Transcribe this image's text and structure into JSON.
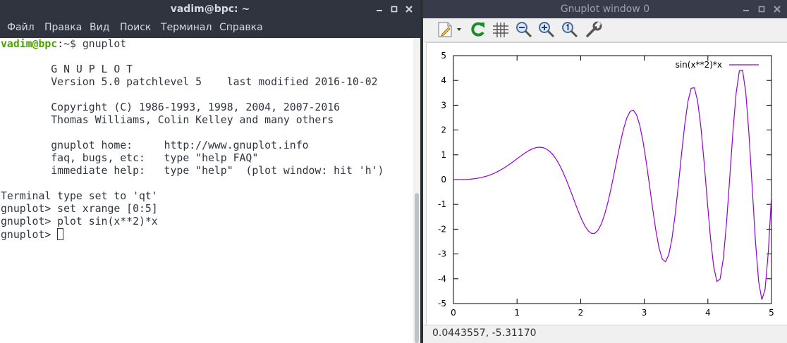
{
  "terminal": {
    "title": "vadim@bpc: ~",
    "menu": [
      "Файл",
      "Правка",
      "Вид",
      "Поиск",
      "Терминал",
      "Справка"
    ],
    "prompt_user": "vadim@bpc",
    "prompt_path": ":~$ ",
    "first_command": "gnuplot",
    "lines": [
      "        G N U P L O T",
      "        Version 5.0 patchlevel 5    last modified 2016-10-02",
      "",
      "        Copyright (C) 1986-1993, 1998, 2004, 2007-2016",
      "        Thomas Williams, Colin Kelley and many others",
      "",
      "        gnuplot home:     http://www.gnuplot.info",
      "        faq, bugs, etc:   type \"help FAQ\"",
      "        immediate help:   type \"help\"  (plot window: hit 'h')",
      "",
      "Terminal type set to 'qt'",
      "gnuplot> set xrange [0:5]",
      "gnuplot> plot sin(x**2)*x"
    ],
    "last_prompt": "gnuplot> "
  },
  "gnuplot": {
    "title": "Gnuplot window 0",
    "toolbar_icons": [
      "export-icon",
      "replot-icon",
      "grid-icon",
      "zoom-out-icon",
      "zoom-in-icon",
      "zoom-reset-icon",
      "settings-icon"
    ],
    "status": "0.0443557, -5.31170",
    "colors": {
      "curve": "#9400d3"
    }
  },
  "chart_data": {
    "type": "line",
    "title": "",
    "xlabel": "",
    "ylabel": "",
    "xlim": [
      0,
      5
    ],
    "ylim": [
      -5,
      5
    ],
    "x_ticks": [
      "0",
      "1",
      "2",
      "3",
      "4",
      "5"
    ],
    "y_ticks": [
      "5",
      "4",
      "3",
      "2",
      "1",
      "0",
      "-1",
      "-2",
      "-3",
      "-4",
      "-5"
    ],
    "grid": false,
    "legend": "top-right",
    "series": [
      {
        "name": "sin(x**2)*x",
        "expression": "sin(x**2)*x",
        "color": "#9400d3"
      }
    ]
  }
}
